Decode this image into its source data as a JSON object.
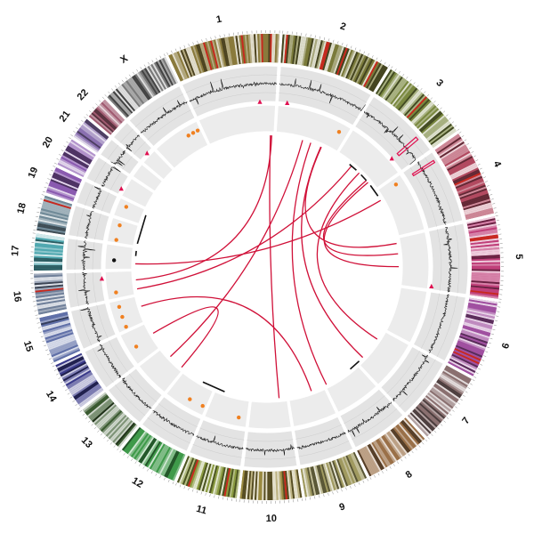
{
  "chart_data": {
    "type": "circos",
    "chromosomes": [
      {
        "name": "1",
        "length": 249,
        "color": "#8a7a3c",
        "label": "1"
      },
      {
        "name": "2",
        "length": 243,
        "color": "#7a7a3a",
        "label": "2"
      },
      {
        "name": "3",
        "length": 198,
        "color": "#7a8840",
        "label": "3"
      },
      {
        "name": "4",
        "length": 191,
        "color": "#b24a60",
        "label": "4"
      },
      {
        "name": "5",
        "length": 181,
        "color": "#c0407a",
        "label": "5"
      },
      {
        "name": "6",
        "length": 171,
        "color": "#a050a0",
        "label": "6"
      },
      {
        "name": "7",
        "length": 159,
        "color": "#8a7070",
        "label": "7"
      },
      {
        "name": "8",
        "length": 146,
        "color": "#9a7048",
        "label": "8"
      },
      {
        "name": "9",
        "length": 141,
        "color": "#a09a60",
        "label": "9"
      },
      {
        "name": "10",
        "length": 136,
        "color": "#9a8a40",
        "label": "10"
      },
      {
        "name": "11",
        "length": 135,
        "color": "#8a9a40",
        "label": "11"
      },
      {
        "name": "12",
        "length": 133,
        "color": "#3f9a4a",
        "label": "12"
      },
      {
        "name": "13",
        "length": 115,
        "color": "#3a5a30",
        "label": "13"
      },
      {
        "name": "14",
        "length": 107,
        "color": "#3a3a8a",
        "label": "14"
      },
      {
        "name": "15",
        "length": 102,
        "color": "#6070a8",
        "label": "15"
      },
      {
        "name": "16",
        "length": 90,
        "color": "#70809a",
        "label": "16"
      },
      {
        "name": "17",
        "length": 81,
        "color": "#50a8b0",
        "label": "17"
      },
      {
        "name": "18",
        "length": 78,
        "color": "#708a98",
        "label": "18"
      },
      {
        "name": "19",
        "length": 59,
        "color": "#8a5ab0",
        "label": "19"
      },
      {
        "name": "20",
        "length": 63,
        "color": "#8a5ab0",
        "label": "20"
      },
      {
        "name": "21",
        "length": 48,
        "color": "#8a70b0",
        "label": "21"
      },
      {
        "name": "22",
        "length": 51,
        "color": "#a05a70",
        "label": "22"
      },
      {
        "name": "X",
        "length": 155,
        "color": "#7a7a7a",
        "label": "X"
      }
    ],
    "points": [
      {
        "chr": "X",
        "pos": 110,
        "color": "#f08020",
        "shape": "dot"
      },
      {
        "chr": "X",
        "pos": 128,
        "color": "#f08020",
        "shape": "dot"
      },
      {
        "chr": "X",
        "pos": 145,
        "color": "#f08020",
        "shape": "dot"
      },
      {
        "chr": "1",
        "pos": 200,
        "color": "#e01050",
        "shape": "triangle"
      },
      {
        "chr": "2",
        "pos": 28,
        "color": "#e01050",
        "shape": "triangle"
      },
      {
        "chr": "2",
        "pos": 215,
        "color": "#f08020",
        "shape": "dot"
      },
      {
        "chr": "3",
        "pos": 150,
        "color": "#e01050",
        "shape": "triangle"
      },
      {
        "chr": "4",
        "pos": 20,
        "color": "#f08020",
        "shape": "dot"
      },
      {
        "chr": "5",
        "pos": 170,
        "color": "#e01050",
        "shape": "triangle"
      },
      {
        "chr": "11",
        "pos": 28,
        "color": "#f08020",
        "shape": "dot"
      },
      {
        "chr": "12",
        "pos": 12,
        "color": "#f08020",
        "shape": "dot"
      },
      {
        "chr": "12",
        "pos": 60,
        "color": "#f08020",
        "shape": "dot"
      },
      {
        "chr": "14",
        "pos": 50,
        "color": "#f08020",
        "shape": "dot"
      },
      {
        "chr": "15",
        "pos": 10,
        "color": "#f08020",
        "shape": "dot"
      },
      {
        "chr": "15",
        "pos": 45,
        "color": "#f08020",
        "shape": "dot"
      },
      {
        "chr": "15",
        "pos": 80,
        "color": "#f08020",
        "shape": "dot"
      },
      {
        "chr": "16",
        "pos": 20,
        "color": "#f08020",
        "shape": "dot"
      },
      {
        "chr": "16",
        "pos": 70,
        "color": "#e01050",
        "shape": "triangle"
      },
      {
        "chr": "17",
        "pos": 30,
        "color": "#111111",
        "shape": "dot"
      },
      {
        "chr": "18",
        "pos": 10,
        "color": "#f08020",
        "shape": "dot"
      },
      {
        "chr": "18",
        "pos": 60,
        "color": "#f08020",
        "shape": "dot"
      },
      {
        "chr": "19",
        "pos": 40,
        "color": "#f08020",
        "shape": "dot"
      },
      {
        "chr": "20",
        "pos": 20,
        "color": "#e01050",
        "shape": "triangle"
      },
      {
        "chr": "22",
        "pos": 30,
        "color": "#e01050",
        "shape": "triangle"
      }
    ],
    "links": [
      {
        "a": [
          "1",
          235
        ],
        "b": [
          "10",
          30
        ],
        "color": "#d01038"
      },
      {
        "a": [
          "1",
          240
        ],
        "b": [
          "16",
          55
        ],
        "color": "#d01038"
      },
      {
        "a": [
          "2",
          105
        ],
        "b": [
          "13",
          70
        ],
        "color": "#d01038"
      },
      {
        "a": [
          "2",
          138
        ],
        "b": [
          "8",
          140
        ],
        "color": "#d01038"
      },
      {
        "a": [
          "2",
          180
        ],
        "b": [
          "7",
          130
        ],
        "color": "#d01038"
      },
      {
        "a": [
          "2",
          182
        ],
        "b": [
          "5",
          20
        ],
        "color": "#d01038"
      },
      {
        "a": [
          "3",
          70
        ],
        "b": [
          "16",
          20
        ],
        "color": "#d01038"
      },
      {
        "a": [
          "3",
          110
        ],
        "b": [
          "7",
          40
        ],
        "color": "#d01038"
      },
      {
        "a": [
          "3",
          150
        ],
        "b": [
          "5",
          60
        ],
        "color": "#d01038"
      },
      {
        "a": [
          "3",
          160
        ],
        "b": [
          "5",
          110
        ],
        "color": "#d01038"
      },
      {
        "a": [
          "4",
          40
        ],
        "b": [
          "17",
          20
        ],
        "color": "#d01038"
      },
      {
        "a": [
          "9",
          50
        ],
        "b": [
          "15",
          60
        ],
        "color": "#d01038"
      },
      {
        "a": [
          "14",
          60
        ],
        "b": [
          "13",
          10
        ],
        "color": "#d01038"
      },
      {
        "a": [
          "3",
          60
        ],
        "b": [
          "3",
          95
        ],
        "color": "#111111"
      },
      {
        "a": [
          "3",
          120
        ],
        "b": [
          "3",
          150
        ],
        "color": "#111111"
      },
      {
        "a": [
          "3",
          175
        ],
        "b": [
          "4",
          20
        ],
        "color": "#111111"
      },
      {
        "a": [
          "7",
          150
        ],
        "b": [
          "8",
          30
        ],
        "color": "#111111"
      },
      {
        "a": [
          "11",
          100
        ],
        "b": [
          "12",
          50
        ],
        "color": "#111111"
      },
      {
        "a": [
          "17",
          50
        ],
        "b": [
          "17",
          70
        ],
        "color": "#111111"
      },
      {
        "a": [
          "18",
          10
        ],
        "b": [
          "19",
          40
        ],
        "color": "#111111"
      }
    ]
  }
}
